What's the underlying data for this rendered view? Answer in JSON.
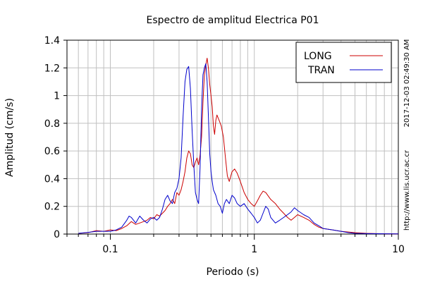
{
  "chart_data": {
    "type": "line",
    "title": "Espectro de amplitud Electrica P01",
    "xlabel": "Periodo (s)",
    "ylabel": "Amplitud (cm/s)",
    "x_scale": "log",
    "xlim": [
      0.05,
      10
    ],
    "ylim": [
      0,
      1.4
    ],
    "x_ticks": [
      0.1,
      1,
      10
    ],
    "x_tick_labels": [
      "0.1",
      "1",
      "10"
    ],
    "y_ticks": [
      0,
      0.2,
      0.4,
      0.6,
      0.8,
      1,
      1.2,
      1.4
    ],
    "y_tick_labels": [
      "0",
      "0.2",
      "0.4",
      "0.6",
      "0.8",
      "1",
      "1.2",
      "1.4"
    ],
    "grid": true,
    "legend_position": "top-right",
    "side_text": [
      "2017-12-03 02:49:30 AM",
      "http://www.lis.ucr.ac.cr"
    ],
    "series": [
      {
        "name": "LONG",
        "color": "#cc0000",
        "points": [
          [
            0.06,
            0.005
          ],
          [
            0.07,
            0.01
          ],
          [
            0.08,
            0.025
          ],
          [
            0.09,
            0.02
          ],
          [
            0.1,
            0.03
          ],
          [
            0.11,
            0.025
          ],
          [
            0.12,
            0.04
          ],
          [
            0.13,
            0.06
          ],
          [
            0.14,
            0.09
          ],
          [
            0.15,
            0.07
          ],
          [
            0.16,
            0.08
          ],
          [
            0.17,
            0.09
          ],
          [
            0.18,
            0.1
          ],
          [
            0.19,
            0.12
          ],
          [
            0.2,
            0.11
          ],
          [
            0.21,
            0.14
          ],
          [
            0.22,
            0.13
          ],
          [
            0.23,
            0.15
          ],
          [
            0.24,
            0.17
          ],
          [
            0.25,
            0.2
          ],
          [
            0.26,
            0.22
          ],
          [
            0.27,
            0.25
          ],
          [
            0.28,
            0.22
          ],
          [
            0.29,
            0.3
          ],
          [
            0.3,
            0.28
          ],
          [
            0.31,
            0.32
          ],
          [
            0.32,
            0.38
          ],
          [
            0.33,
            0.45
          ],
          [
            0.34,
            0.55
          ],
          [
            0.35,
            0.6
          ],
          [
            0.36,
            0.58
          ],
          [
            0.37,
            0.5
          ],
          [
            0.38,
            0.48
          ],
          [
            0.39,
            0.52
          ],
          [
            0.4,
            0.55
          ],
          [
            0.41,
            0.5
          ],
          [
            0.42,
            0.57
          ],
          [
            0.43,
            0.7
          ],
          [
            0.44,
            0.95
          ],
          [
            0.45,
            1.15
          ],
          [
            0.46,
            1.22
          ],
          [
            0.47,
            1.27
          ],
          [
            0.48,
            1.2
          ],
          [
            0.49,
            1.08
          ],
          [
            0.5,
            1.0
          ],
          [
            0.51,
            0.92
          ],
          [
            0.52,
            0.78
          ],
          [
            0.53,
            0.72
          ],
          [
            0.54,
            0.82
          ],
          [
            0.55,
            0.86
          ],
          [
            0.57,
            0.82
          ],
          [
            0.59,
            0.78
          ],
          [
            0.61,
            0.7
          ],
          [
            0.63,
            0.55
          ],
          [
            0.65,
            0.42
          ],
          [
            0.67,
            0.38
          ],
          [
            0.7,
            0.45
          ],
          [
            0.73,
            0.47
          ],
          [
            0.76,
            0.44
          ],
          [
            0.8,
            0.38
          ],
          [
            0.85,
            0.3
          ],
          [
            0.9,
            0.25
          ],
          [
            0.95,
            0.22
          ],
          [
            1.0,
            0.2
          ],
          [
            1.05,
            0.24
          ],
          [
            1.1,
            0.28
          ],
          [
            1.15,
            0.31
          ],
          [
            1.2,
            0.3
          ],
          [
            1.3,
            0.25
          ],
          [
            1.4,
            0.22
          ],
          [
            1.5,
            0.18
          ],
          [
            1.6,
            0.15
          ],
          [
            1.7,
            0.12
          ],
          [
            1.8,
            0.1
          ],
          [
            1.9,
            0.12
          ],
          [
            2.0,
            0.14
          ],
          [
            2.2,
            0.12
          ],
          [
            2.4,
            0.1
          ],
          [
            2.6,
            0.07
          ],
          [
            2.8,
            0.05
          ],
          [
            3.0,
            0.04
          ],
          [
            3.5,
            0.03
          ],
          [
            4.0,
            0.02
          ],
          [
            4.5,
            0.015
          ],
          [
            5.0,
            0.01
          ],
          [
            6.0,
            0.005
          ],
          [
            8.0,
            0.002
          ],
          [
            10.0,
            0.001
          ]
        ]
      },
      {
        "name": "TRAN",
        "color": "#0000cc",
        "points": [
          [
            0.06,
            0.005
          ],
          [
            0.07,
            0.012
          ],
          [
            0.08,
            0.02
          ],
          [
            0.09,
            0.02
          ],
          [
            0.1,
            0.02
          ],
          [
            0.11,
            0.03
          ],
          [
            0.12,
            0.05
          ],
          [
            0.13,
            0.1
          ],
          [
            0.135,
            0.13
          ],
          [
            0.14,
            0.12
          ],
          [
            0.15,
            0.08
          ],
          [
            0.16,
            0.13
          ],
          [
            0.17,
            0.1
          ],
          [
            0.18,
            0.08
          ],
          [
            0.19,
            0.11
          ],
          [
            0.2,
            0.12
          ],
          [
            0.21,
            0.1
          ],
          [
            0.22,
            0.12
          ],
          [
            0.23,
            0.18
          ],
          [
            0.24,
            0.25
          ],
          [
            0.25,
            0.28
          ],
          [
            0.26,
            0.24
          ],
          [
            0.27,
            0.22
          ],
          [
            0.28,
            0.3
          ],
          [
            0.29,
            0.33
          ],
          [
            0.3,
            0.4
          ],
          [
            0.31,
            0.55
          ],
          [
            0.32,
            0.85
          ],
          [
            0.33,
            1.1
          ],
          [
            0.34,
            1.19
          ],
          [
            0.35,
            1.21
          ],
          [
            0.36,
            1.05
          ],
          [
            0.37,
            0.75
          ],
          [
            0.38,
            0.5
          ],
          [
            0.39,
            0.3
          ],
          [
            0.4,
            0.25
          ],
          [
            0.41,
            0.22
          ],
          [
            0.42,
            0.48
          ],
          [
            0.43,
            0.9
          ],
          [
            0.44,
            1.15
          ],
          [
            0.45,
            1.2
          ],
          [
            0.46,
            1.23
          ],
          [
            0.47,
            1.1
          ],
          [
            0.48,
            0.85
          ],
          [
            0.49,
            0.58
          ],
          [
            0.5,
            0.45
          ],
          [
            0.51,
            0.38
          ],
          [
            0.52,
            0.32
          ],
          [
            0.54,
            0.28
          ],
          [
            0.56,
            0.22
          ],
          [
            0.58,
            0.2
          ],
          [
            0.6,
            0.15
          ],
          [
            0.62,
            0.22
          ],
          [
            0.64,
            0.25
          ],
          [
            0.67,
            0.22
          ],
          [
            0.7,
            0.28
          ],
          [
            0.73,
            0.26
          ],
          [
            0.76,
            0.22
          ],
          [
            0.8,
            0.2
          ],
          [
            0.85,
            0.22
          ],
          [
            0.9,
            0.18
          ],
          [
            0.95,
            0.15
          ],
          [
            1.0,
            0.12
          ],
          [
            1.05,
            0.08
          ],
          [
            1.1,
            0.1
          ],
          [
            1.15,
            0.15
          ],
          [
            1.2,
            0.2
          ],
          [
            1.25,
            0.18
          ],
          [
            1.3,
            0.12
          ],
          [
            1.4,
            0.08
          ],
          [
            1.5,
            0.1
          ],
          [
            1.6,
            0.12
          ],
          [
            1.7,
            0.14
          ],
          [
            1.8,
            0.16
          ],
          [
            1.9,
            0.19
          ],
          [
            2.0,
            0.17
          ],
          [
            2.2,
            0.14
          ],
          [
            2.4,
            0.12
          ],
          [
            2.6,
            0.08
          ],
          [
            2.8,
            0.06
          ],
          [
            3.0,
            0.04
          ],
          [
            3.5,
            0.03
          ],
          [
            4.0,
            0.02
          ],
          [
            4.5,
            0.01
          ],
          [
            5.0,
            0.005
          ],
          [
            6.0,
            0.003
          ],
          [
            8.0,
            0.002
          ],
          [
            10.0,
            0.001
          ]
        ]
      }
    ]
  }
}
